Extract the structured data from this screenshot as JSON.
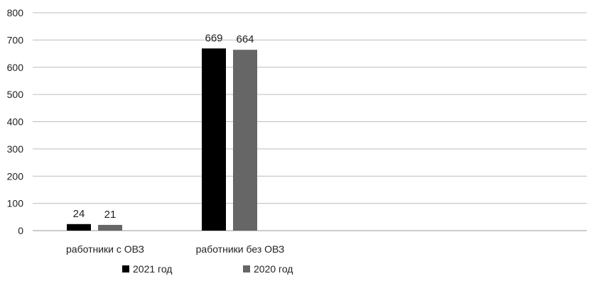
{
  "chart_data": {
    "type": "bar",
    "categories": [
      "работники с ОВЗ",
      "работники без ОВЗ"
    ],
    "series": [
      {
        "name": "2021 год",
        "values": [
          24,
          669
        ],
        "color": "#000000"
      },
      {
        "name": "2020 год",
        "values": [
          21,
          664
        ],
        "color": "#666666"
      }
    ],
    "title": "",
    "xlabel": "",
    "ylabel": "",
    "ylim": [
      0,
      800
    ],
    "yticks": [
      0,
      100,
      200,
      300,
      400,
      500,
      600,
      700,
      800
    ],
    "grid": true,
    "legend_position": "bottom",
    "data_labels": true
  }
}
